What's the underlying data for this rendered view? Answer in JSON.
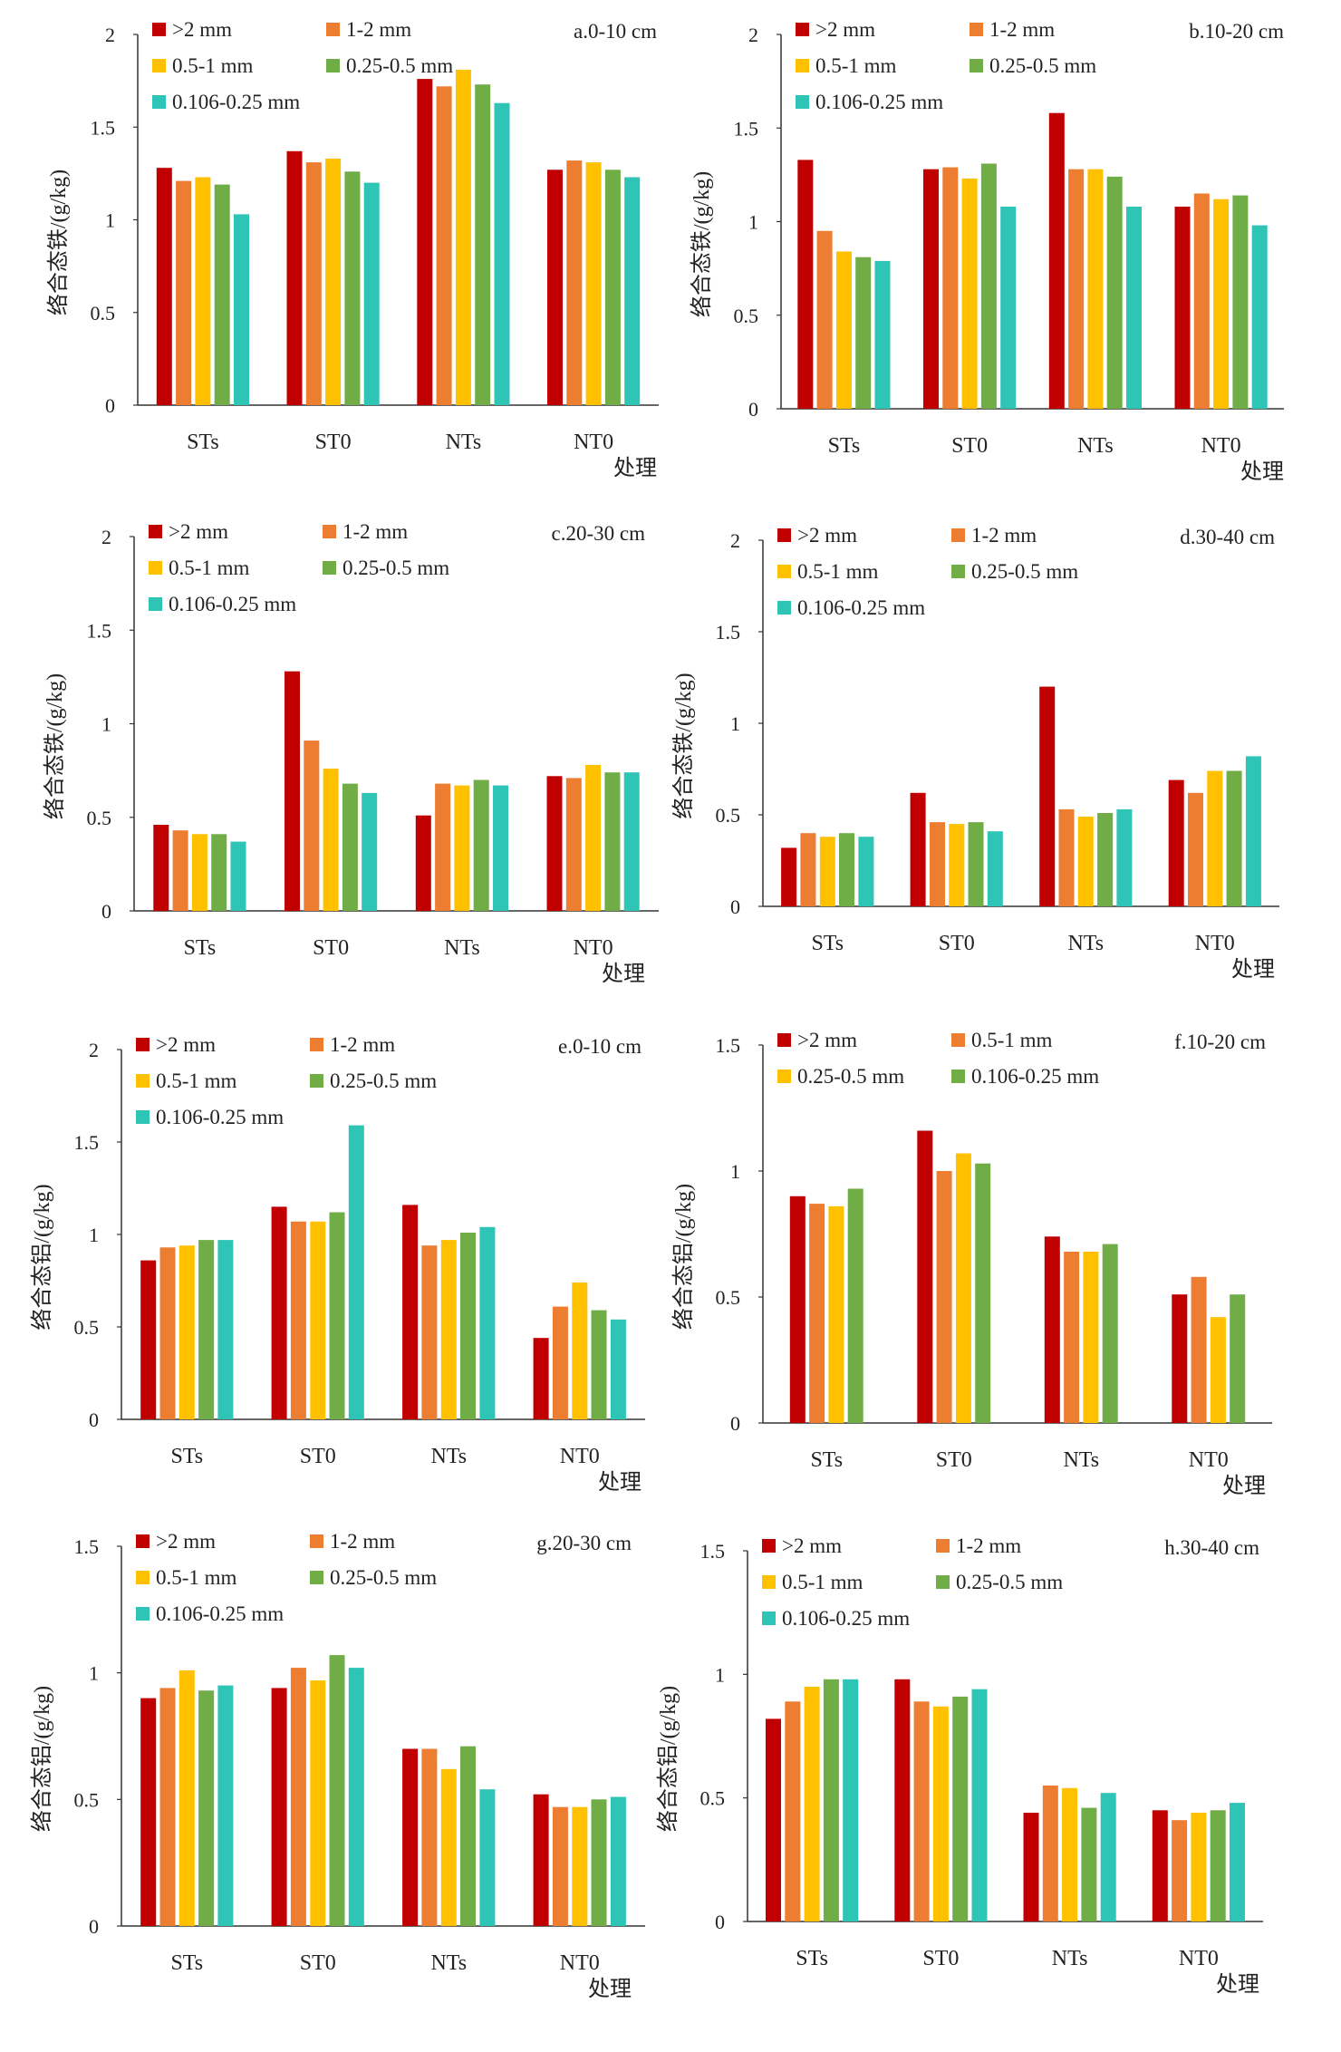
{
  "chart_data": [
    {
      "type": "bar",
      "panel_label": "a.0-10 cm",
      "ylabel": "络合态铁/(g/kg)",
      "xlabel": "处理",
      "categories": [
        "STs",
        "ST0",
        "NTs",
        "NT0"
      ],
      "ylim": [
        0,
        2
      ],
      "yticks": [
        "0",
        "0.5",
        "1",
        "1.5",
        "2"
      ],
      "legend_position": "top",
      "series": [
        {
          "name": ">2 mm",
          "color": "#C00000",
          "values": [
            1.28,
            1.37,
            1.76,
            1.27
          ]
        },
        {
          "name": "1-2 mm",
          "color": "#ED7D31",
          "values": [
            1.21,
            1.31,
            1.72,
            1.32
          ]
        },
        {
          "name": "0.5-1 mm",
          "color": "#FFC000",
          "values": [
            1.23,
            1.33,
            1.81,
            1.31
          ]
        },
        {
          "name": "0.25-0.5 mm",
          "color": "#70AD47",
          "values": [
            1.19,
            1.26,
            1.73,
            1.27
          ]
        },
        {
          "name": "0.106-0.25 mm",
          "color": "#2EC4B6",
          "values": [
            1.03,
            1.2,
            1.63,
            1.23
          ]
        }
      ]
    },
    {
      "type": "bar",
      "panel_label": "b.10-20 cm",
      "ylabel": "络合态铁/(g/kg)",
      "xlabel": "处理",
      "categories": [
        "STs",
        "ST0",
        "NTs",
        "NT0"
      ],
      "ylim": [
        0,
        2
      ],
      "yticks": [
        "0",
        "0.5",
        "1",
        "1.5",
        "2"
      ],
      "legend_position": "top",
      "series": [
        {
          "name": ">2 mm",
          "color": "#C00000",
          "values": [
            1.33,
            1.28,
            1.58,
            1.08
          ]
        },
        {
          "name": "1-2 mm",
          "color": "#ED7D31",
          "values": [
            0.95,
            1.29,
            1.28,
            1.15
          ]
        },
        {
          "name": "0.5-1 mm",
          "color": "#FFC000",
          "values": [
            0.84,
            1.23,
            1.28,
            1.12
          ]
        },
        {
          "name": "0.25-0.5 mm",
          "color": "#70AD47",
          "values": [
            0.81,
            1.31,
            1.24,
            1.14
          ]
        },
        {
          "name": "0.106-0.25 mm",
          "color": "#2EC4B6",
          "values": [
            0.79,
            1.08,
            1.08,
            0.98
          ]
        }
      ]
    },
    {
      "type": "bar",
      "panel_label": "c.20-30 cm",
      "ylabel": "络合态铁/(g/kg)",
      "xlabel": "处理",
      "categories": [
        "STs",
        "ST0",
        "NTs",
        "NT0"
      ],
      "ylim": [
        0,
        2
      ],
      "yticks": [
        "0",
        "0.5",
        "1",
        "1.5",
        "2"
      ],
      "legend_position": "top",
      "series": [
        {
          "name": ">2 mm",
          "color": "#C00000",
          "values": [
            0.46,
            1.28,
            0.51,
            0.72
          ]
        },
        {
          "name": "1-2 mm",
          "color": "#ED7D31",
          "values": [
            0.43,
            0.91,
            0.68,
            0.71
          ]
        },
        {
          "name": "0.5-1 mm",
          "color": "#FFC000",
          "values": [
            0.41,
            0.76,
            0.67,
            0.78
          ]
        },
        {
          "name": "0.25-0.5 mm",
          "color": "#70AD47",
          "values": [
            0.41,
            0.68,
            0.7,
            0.74
          ]
        },
        {
          "name": "0.106-0.25 mm",
          "color": "#2EC4B6",
          "values": [
            0.37,
            0.63,
            0.67,
            0.74
          ]
        }
      ]
    },
    {
      "type": "bar",
      "panel_label": "d.30-40 cm",
      "ylabel": "络合态铁/(g/kg)",
      "xlabel": "处理",
      "categories": [
        "STs",
        "ST0",
        "NTs",
        "NT0"
      ],
      "ylim": [
        0,
        2
      ],
      "yticks": [
        "0",
        "0.5",
        "1",
        "1.5",
        "2"
      ],
      "legend_position": "top",
      "series": [
        {
          "name": ">2 mm",
          "color": "#C00000",
          "values": [
            0.32,
            0.62,
            1.2,
            0.69
          ]
        },
        {
          "name": "1-2 mm",
          "color": "#ED7D31",
          "values": [
            0.4,
            0.46,
            0.53,
            0.62
          ]
        },
        {
          "name": "0.5-1 mm",
          "color": "#FFC000",
          "values": [
            0.38,
            0.45,
            0.49,
            0.74
          ]
        },
        {
          "name": "0.25-0.5 mm",
          "color": "#70AD47",
          "values": [
            0.4,
            0.46,
            0.51,
            0.74
          ]
        },
        {
          "name": "0.106-0.25 mm",
          "color": "#2EC4B6",
          "values": [
            0.38,
            0.41,
            0.53,
            0.82
          ]
        }
      ]
    },
    {
      "type": "bar",
      "panel_label": "e.0-10 cm",
      "ylabel": "络合态铝/(g/kg)",
      "xlabel": "处理",
      "categories": [
        "STs",
        "ST0",
        "NTs",
        "NT0"
      ],
      "ylim": [
        0,
        2
      ],
      "yticks": [
        "0",
        "0.5",
        "1",
        "1.5",
        "2"
      ],
      "legend_position": "top",
      "series": [
        {
          "name": ">2 mm",
          "color": "#C00000",
          "values": [
            0.86,
            1.15,
            1.16,
            0.44
          ]
        },
        {
          "name": "1-2 mm",
          "color": "#ED7D31",
          "values": [
            0.93,
            1.07,
            0.94,
            0.61
          ]
        },
        {
          "name": "0.5-1 mm",
          "color": "#FFC000",
          "values": [
            0.94,
            1.07,
            0.97,
            0.74
          ]
        },
        {
          "name": "0.25-0.5 mm",
          "color": "#70AD47",
          "values": [
            0.97,
            1.12,
            1.01,
            0.59
          ]
        },
        {
          "name": "0.106-0.25 mm",
          "color": "#2EC4B6",
          "values": [
            0.97,
            1.59,
            1.04,
            0.54
          ]
        }
      ]
    },
    {
      "type": "bar",
      "panel_label": "f.10-20 cm",
      "ylabel": "络合态铝/(g/kg)",
      "xlabel": "处理",
      "categories": [
        "STs",
        "ST0",
        "NTs",
        "NT0"
      ],
      "ylim": [
        0,
        1.5
      ],
      "yticks": [
        "0",
        "0.5",
        "1",
        "1.5"
      ],
      "legend_position": "top",
      "series": [
        {
          "name": ">2 mm",
          "color": "#C00000",
          "values": [
            0.9,
            1.16,
            0.74,
            0.51
          ]
        },
        {
          "name": "0.5-1 mm",
          "color": "#ED7D31",
          "values": [
            0.87,
            1.0,
            0.68,
            0.58
          ]
        },
        {
          "name": "0.25-0.5 mm",
          "color": "#FFC000",
          "values": [
            0.86,
            1.07,
            0.68,
            0.42
          ]
        },
        {
          "name": "0.106-0.25 mm",
          "color": "#70AD47",
          "values": [
            0.93,
            1.03,
            0.71,
            0.51
          ]
        }
      ]
    },
    {
      "type": "bar",
      "panel_label": "g.20-30 cm",
      "ylabel": "络合态铝/(g/kg)",
      "xlabel": "处理",
      "categories": [
        "STs",
        "ST0",
        "NTs",
        "NT0"
      ],
      "ylim": [
        0,
        1.5
      ],
      "yticks": [
        "0",
        "0.5",
        "1",
        "1.5"
      ],
      "legend_position": "top",
      "series": [
        {
          "name": ">2 mm",
          "color": "#C00000",
          "values": [
            0.9,
            0.94,
            0.7,
            0.52
          ]
        },
        {
          "name": "1-2 mm",
          "color": "#ED7D31",
          "values": [
            0.94,
            1.02,
            0.7,
            0.47
          ]
        },
        {
          "name": "0.5-1 mm",
          "color": "#FFC000",
          "values": [
            1.01,
            0.97,
            0.62,
            0.47
          ]
        },
        {
          "name": "0.25-0.5 mm",
          "color": "#70AD47",
          "values": [
            0.93,
            1.07,
            0.71,
            0.5
          ]
        },
        {
          "name": "0.106-0.25 mm",
          "color": "#2EC4B6",
          "values": [
            0.95,
            1.02,
            0.54,
            0.51
          ]
        }
      ]
    },
    {
      "type": "bar",
      "panel_label": "h.30-40 cm",
      "ylabel": "络合态铝/(g/kg)",
      "xlabel": "处理",
      "categories": [
        "STs",
        "ST0",
        "NTs",
        "NT0"
      ],
      "ylim": [
        0,
        1.5
      ],
      "yticks": [
        "0",
        "0.5",
        "1",
        "1.5"
      ],
      "legend_position": "top",
      "series": [
        {
          "name": ">2 mm",
          "color": "#C00000",
          "values": [
            0.82,
            0.98,
            0.44,
            0.45
          ]
        },
        {
          "name": "1-2 mm",
          "color": "#ED7D31",
          "values": [
            0.89,
            0.89,
            0.55,
            0.41
          ]
        },
        {
          "name": "0.5-1 mm",
          "color": "#FFC000",
          "values": [
            0.95,
            0.87,
            0.54,
            0.44
          ]
        },
        {
          "name": "0.25-0.5 mm",
          "color": "#70AD47",
          "values": [
            0.98,
            0.91,
            0.46,
            0.45
          ]
        },
        {
          "name": "0.106-0.25 mm",
          "color": "#2EC4B6",
          "values": [
            0.98,
            0.94,
            0.52,
            0.48
          ]
        }
      ]
    }
  ]
}
